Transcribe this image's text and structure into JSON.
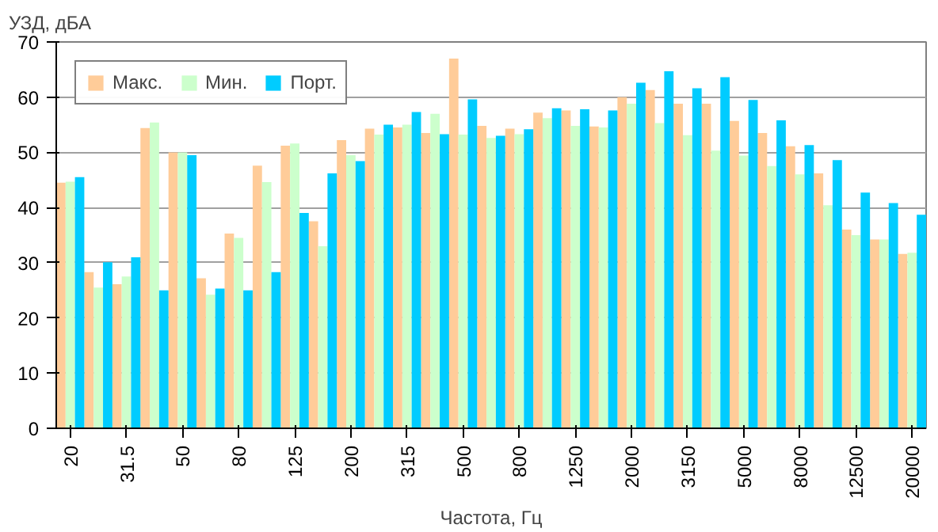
{
  "chart_data": {
    "type": "bar",
    "ylabel": "УЗД, дБА",
    "xlabel": "Частота, Гц",
    "categories": [
      "20",
      null,
      "31.5",
      null,
      "50",
      null,
      "80",
      null,
      "125",
      null,
      "200",
      null,
      "315",
      null,
      "500",
      null,
      "800",
      null,
      "1250",
      null,
      "2000",
      null,
      "3150",
      null,
      "5000",
      null,
      "8000",
      null,
      "12500",
      null,
      "20000"
    ],
    "series": [
      {
        "name": "Макс.",
        "color": "#ffcc99",
        "values": [
          44.5,
          28.3,
          26.1,
          54.4,
          50,
          27.2,
          35.3,
          47.6,
          51.2,
          37.5,
          52.2,
          54.3,
          54.5,
          53.5,
          67,
          54.8,
          54.3,
          57.2,
          57.6,
          54.7,
          60,
          61.3,
          58.8,
          58.8,
          55.7,
          53.5,
          51.1,
          46.2,
          36,
          34.2,
          31.6
        ]
      },
      {
        "name": "Мин.",
        "color": "#ccffcc",
        "values": [
          44.7,
          25.5,
          27.5,
          55.4,
          50,
          24.2,
          34.5,
          44.6,
          51.6,
          33,
          49.5,
          53.2,
          55,
          57,
          53.2,
          52.6,
          53.3,
          56.2,
          54.8,
          54.5,
          58.8,
          55.3,
          53.1,
          50.3,
          49.4,
          47.5,
          46,
          40.4,
          35,
          34.2,
          31.8
        ]
      },
      {
        "name": "Порт.",
        "color": "#00ccff",
        "values": [
          45.5,
          30.1,
          31,
          25,
          49.5,
          25.3,
          25,
          28.3,
          39,
          46.2,
          48.4,
          55,
          57.3,
          53.3,
          59.6,
          53,
          54.2,
          58,
          57.8,
          57.6,
          62.6,
          64.7,
          61.6,
          63.6,
          59.5,
          55.8,
          51.3,
          48.6,
          42.7,
          40.8,
          38.7
        ]
      }
    ],
    "ylim": [
      0,
      70
    ],
    "yticks": [
      0,
      10,
      20,
      30,
      40,
      50,
      60,
      70
    ],
    "grid": "y",
    "legend": "top left"
  }
}
